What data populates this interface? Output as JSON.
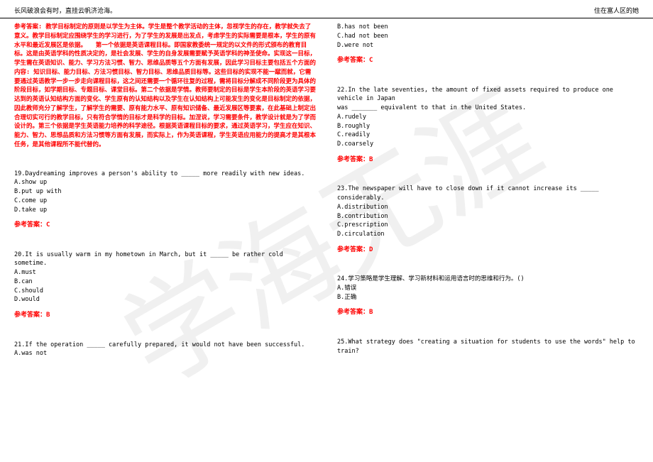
{
  "header": {
    "left": "长风破浪会有时，直挂云帆济沧海。",
    "right": "住在富人区的她"
  },
  "watermark": "学海无涯",
  "left_column": {
    "explanation": "参考答案: 教学目标制定的原则是以学生为主体。学生是整个教学活动的主体，忽视学生的存在，教学就失去了意义。教学目标制定应围绕学生的学习进行，为了学生的发展是出发点，考虑学生的实际需要是根本，学生的原有水平和最近发展区是依据。　　第一个依据是英语课程目标。即国家教委统一规定的以文件的形式颁布的教育目标。这是由英语学科的性质决定的，是社会发展、学生的自身发展需要赋予英语学科的神圣使命。实现这一目标，学生需在英语知识、能力、学习方法习惯、智力、思维品质等五个方面有发展，因此学习目标主要包括五个方面的内容: 知识目标、能力目标、方法习惯目标、智力目标、思维品质目标等。这些目标的实现不能一蹴而就，它需要通过英语教学一步一步走向课程目标，这之间还需要一个循环往复的过程，需将目标分解成不同阶段更为具体的阶段目标，如学期目标、专题目标、课堂目标。第二个依据是学情。教师要制定的目标是学生本阶段的英语学习要达到的英语认知结构方面的变化、学生原有的认知结构以及学生在认知结构上可能发生的变化是目标制定的依据，因此教师充分了解学生，了解学生的需要、原有能力水平、原有知识储备、最近发展区等要素，在此基础上制定出合理切实可行的教学目标，只有符合学情的目标才是科学的目标。加涅说，学习需要条件，教学设计就是为了学而设计的。第三个依据是学生英语能力培养的科学途径。根据英语课程目标的要求，通过英语学习，学生应在知识、能力、智力、思想品质和方法习惯等方面有发展，而实际上，作为英语课程，学生英语应用能力的提高才是其根本任务，是其他课程所不能代替的。",
    "q19": {
      "text": "19.Daydreaming improves a person's ability to _____ more readily with new ideas.",
      "a": "A.show up",
      "b": "B.put up with",
      "c": "C.come up",
      "d": "D.take up",
      "answer": "参考答案：C"
    },
    "q20": {
      "text": "20.It is usually warm in my hometown in March, but it _____ be rather cold sometime.",
      "a": "A.must",
      "b": "B.can",
      "c": "C.should",
      "d": "D.would",
      "answer": "参考答案：B"
    },
    "q21": {
      "text": "21.If the operation _____ carefully prepared, it would not have been successful.",
      "a": "A.was not"
    }
  },
  "right_column": {
    "q21_cont": {
      "b": "B.has not been",
      "c": "C.had not been",
      "d": "D.were not",
      "answer": "参考答案：C"
    },
    "q22": {
      "text1": "22.In the late seventies, the amount of fixed assets required to produce one vehicle in Japan",
      "text2": "was _______ equivalent to that in the United States.",
      "a": "A.rudely",
      "b": "B.roughly",
      "c": "C.readily",
      "d": "D.coarsely",
      "answer": "参考答案：B"
    },
    "q23": {
      "text": "23.The newspaper will have to close down if it cannot increase its _____ considerably.",
      "a": "A.distribution",
      "b": "B.contribution",
      "c": "C.prescription",
      "d": "D.circulation",
      "answer": "参考答案：D"
    },
    "q24": {
      "text": "24.学习策略是学生理解、学习新材料和运用语言时的思维和行为。()",
      "a": "A.错误",
      "b": "B.正确",
      "answer": "参考答案：B"
    },
    "q25": {
      "text": "25.What strategy does \"creating a situation for students to use the words\" help to train?"
    }
  }
}
